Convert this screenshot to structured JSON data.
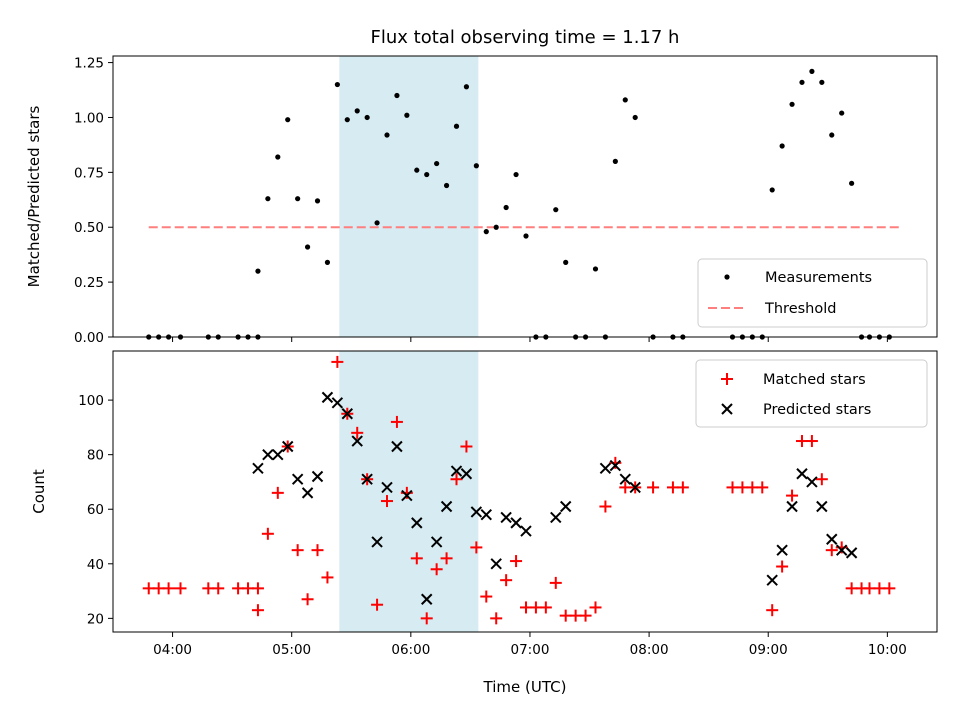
{
  "chart_data": [
    {
      "type": "scatter",
      "title": "Flux total observing time = 1.17 h",
      "xlabel": "",
      "ylabel": "Matched/Predicted stars",
      "xlim": [
        "03:30",
        "10:25"
      ],
      "ylim": [
        0,
        1.28
      ],
      "yticks": [
        "0.00",
        "0.25",
        "0.50",
        "0.75",
        "1.00",
        "1.25"
      ],
      "shaded_interval": [
        "05:24",
        "06:34"
      ],
      "legend_position": "lower-right",
      "grid": false,
      "colors": {
        "measurements": "#000000",
        "threshold": "#ff7f7f",
        "shade": "#add8e6"
      },
      "legend": [
        "Measurements",
        "Threshold"
      ],
      "series": [
        {
          "name": "Measurements",
          "x": [
            "03:48",
            "03:53",
            "03:58",
            "04:04",
            "04:18",
            "04:23",
            "04:33",
            "04:38",
            "04:43",
            "04:43",
            "04:48",
            "04:53",
            "04:58",
            "05:03",
            "05:08",
            "05:13",
            "05:18",
            "05:23",
            "05:28",
            "05:33",
            "05:38",
            "05:43",
            "05:48",
            "05:53",
            "05:58",
            "06:03",
            "06:08",
            "06:13",
            "06:18",
            "06:23",
            "06:28",
            "06:33",
            "06:38",
            "06:43",
            "06:48",
            "06:53",
            "06:58",
            "07:03",
            "07:08",
            "07:13",
            "07:18",
            "07:23",
            "07:28",
            "07:33",
            "07:38",
            "07:43",
            "07:48",
            "07:53",
            "08:02",
            "08:12",
            "08:17",
            "08:42",
            "08:47",
            "08:52",
            "08:57",
            "09:02",
            "09:07",
            "09:12",
            "09:17",
            "09:22",
            "09:27",
            "09:32",
            "09:37",
            "09:42",
            "09:47",
            "09:51",
            "09:56",
            "10:01"
          ],
          "y": [
            0,
            0,
            0,
            0,
            0,
            0,
            0,
            0,
            0,
            0.3,
            0.63,
            0.82,
            0.99,
            0.63,
            0.41,
            0.62,
            0.34,
            1.15,
            0.99,
            1.03,
            1.0,
            0.52,
            0.92,
            1.1,
            1.01,
            0.76,
            0.74,
            0.79,
            0.69,
            0.96,
            1.14,
            0.78,
            0.48,
            0.5,
            0.59,
            0.74,
            0.46,
            0,
            0,
            0.58,
            0.34,
            0,
            0,
            0.31,
            0,
            0.8,
            1.08,
            1.0,
            0,
            0,
            0,
            0,
            0,
            0,
            0,
            0.67,
            0.87,
            1.06,
            1.16,
            1.21,
            1.16,
            0.92,
            1.02,
            0.7,
            0,
            0,
            0,
            0
          ]
        },
        {
          "name": "Threshold",
          "x": [
            "03:48",
            "10:06"
          ],
          "y": [
            0.5,
            0.5
          ]
        }
      ]
    },
    {
      "type": "scatter",
      "title": "",
      "xlabel": "Time (UTC)",
      "ylabel": "Count",
      "xlim": [
        "03:30",
        "10:25"
      ],
      "ylim": [
        15,
        118
      ],
      "xticks": [
        "04:00",
        "05:00",
        "06:00",
        "07:00",
        "08:00",
        "09:00",
        "10:00"
      ],
      "yticks": [
        "20",
        "40",
        "60",
        "80",
        "100"
      ],
      "shaded_interval": [
        "05:24",
        "06:34"
      ],
      "legend_position": "upper-right",
      "grid": false,
      "colors": {
        "matched": "#ff0000",
        "predicted": "#000000",
        "shade": "#add8e6"
      },
      "legend": [
        "Matched stars",
        "Predicted stars"
      ],
      "series": [
        {
          "name": "Matched stars",
          "x": [
            "03:48",
            "03:53",
            "03:58",
            "04:04",
            "04:18",
            "04:23",
            "04:33",
            "04:38",
            "04:43",
            "04:43",
            "04:48",
            "04:53",
            "04:58",
            "05:03",
            "05:08",
            "05:13",
            "05:18",
            "05:23",
            "05:28",
            "05:33",
            "05:38",
            "05:43",
            "05:48",
            "05:53",
            "05:58",
            "06:03",
            "06:08",
            "06:13",
            "06:18",
            "06:23",
            "06:28",
            "06:33",
            "06:38",
            "06:43",
            "06:48",
            "06:53",
            "06:58",
            "07:03",
            "07:08",
            "07:13",
            "07:18",
            "07:23",
            "07:28",
            "07:33",
            "07:38",
            "07:43",
            "07:48",
            "07:53",
            "08:02",
            "08:12",
            "08:17",
            "08:42",
            "08:47",
            "08:52",
            "08:57",
            "09:02",
            "09:07",
            "09:12",
            "09:17",
            "09:22",
            "09:27",
            "09:32",
            "09:37",
            "09:42",
            "09:47",
            "09:51",
            "09:56",
            "10:01"
          ],
          "y": [
            31,
            31,
            31,
            31,
            31,
            31,
            31,
            31,
            31,
            23,
            51,
            66,
            83,
            45,
            27,
            45,
            35,
            114,
            95,
            88,
            71,
            25,
            63,
            92,
            66,
            42,
            20,
            38,
            42,
            71,
            83,
            46,
            28,
            20,
            34,
            41,
            24,
            24,
            24,
            33,
            21,
            21,
            21,
            24,
            61,
            77,
            68,
            68,
            68,
            68,
            68,
            68,
            68,
            68,
            68,
            23,
            39,
            65,
            85,
            85,
            71,
            45,
            46,
            31,
            31,
            31,
            31,
            31
          ]
        },
        {
          "name": "Predicted stars",
          "x": [
            "04:43",
            "04:48",
            "04:53",
            "04:58",
            "05:03",
            "05:08",
            "05:13",
            "05:18",
            "05:23",
            "05:28",
            "05:33",
            "05:38",
            "05:43",
            "05:48",
            "05:53",
            "05:58",
            "06:03",
            "06:08",
            "06:13",
            "06:18",
            "06:23",
            "06:28",
            "06:33",
            "06:38",
            "06:43",
            "06:48",
            "06:53",
            "06:58",
            "07:13",
            "07:18",
            "07:38",
            "07:43",
            "07:48",
            "07:53",
            "09:02",
            "09:07",
            "09:12",
            "09:17",
            "09:22",
            "09:27",
            "09:32",
            "09:37",
            "09:42"
          ],
          "y": [
            75,
            80,
            80,
            83,
            71,
            66,
            72,
            101,
            99,
            95,
            85,
            71,
            48,
            68,
            83,
            65,
            55,
            27,
            48,
            61,
            74,
            73,
            59,
            58,
            40,
            57,
            55,
            52,
            57,
            61,
            75,
            76,
            71,
            68,
            34,
            45,
            61,
            73,
            70,
            61,
            49,
            45,
            44
          ]
        }
      ]
    }
  ]
}
